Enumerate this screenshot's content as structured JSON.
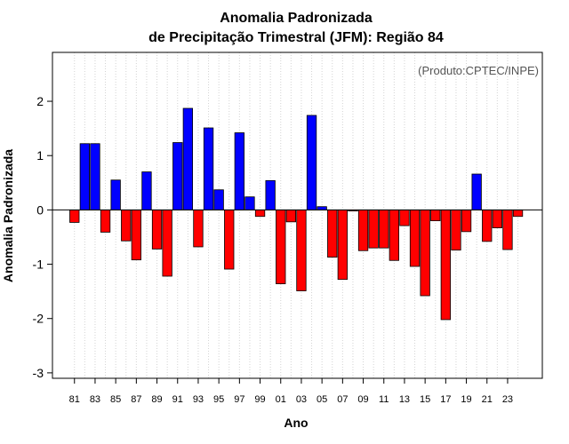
{
  "chart_data": {
    "type": "bar",
    "title": "Anomalia Padronizada",
    "subtitle": "de Precipitação Trimestral (JFM): Região 84",
    "xlabel": "Ano",
    "ylabel": "Anomalia Padronizada",
    "annotation": "(Produto:CPTEC/INPE)",
    "ylim": [
      -3.1,
      2.9
    ],
    "yticks": [
      -3,
      -2,
      -1,
      0,
      1,
      2
    ],
    "x_tick_labels": [
      "81",
      "83",
      "85",
      "87",
      "89",
      "91",
      "93",
      "95",
      "97",
      "99",
      "01",
      "03",
      "05",
      "07",
      "09",
      "11",
      "13",
      "15",
      "17",
      "19",
      "21",
      "23"
    ],
    "grid": "vertical dotted",
    "positive_color": "#0000ff",
    "negative_color": "#ff0000",
    "categories": [
      "1981",
      "1982",
      "1983",
      "1984",
      "1985",
      "1986",
      "1987",
      "1988",
      "1989",
      "1990",
      "1991",
      "1992",
      "1993",
      "1994",
      "1995",
      "1996",
      "1997",
      "1998",
      "1999",
      "2000",
      "2001",
      "2002",
      "2003",
      "2004",
      "2005",
      "2006",
      "2007",
      "2008",
      "2009",
      "2010",
      "2011",
      "2012",
      "2013",
      "2014",
      "2015",
      "2016",
      "2017",
      "2018",
      "2019",
      "2020",
      "2021",
      "2022",
      "2023",
      "2024"
    ],
    "values": [
      -0.23,
      1.22,
      1.22,
      -0.41,
      0.55,
      -0.57,
      -0.92,
      0.7,
      -0.72,
      -1.22,
      1.24,
      1.87,
      -0.68,
      1.51,
      0.37,
      -1.09,
      1.42,
      0.24,
      -0.12,
      0.54,
      -1.36,
      -0.22,
      -1.49,
      1.74,
      0.06,
      -0.87,
      -1.28,
      -0.02,
      -0.75,
      -0.7,
      -0.7,
      -0.93,
      -0.29,
      -1.04,
      -1.58,
      -0.2,
      -2.02,
      -0.74,
      -0.4,
      0.66,
      -0.58,
      -0.33,
      -0.73,
      -0.12
    ]
  }
}
